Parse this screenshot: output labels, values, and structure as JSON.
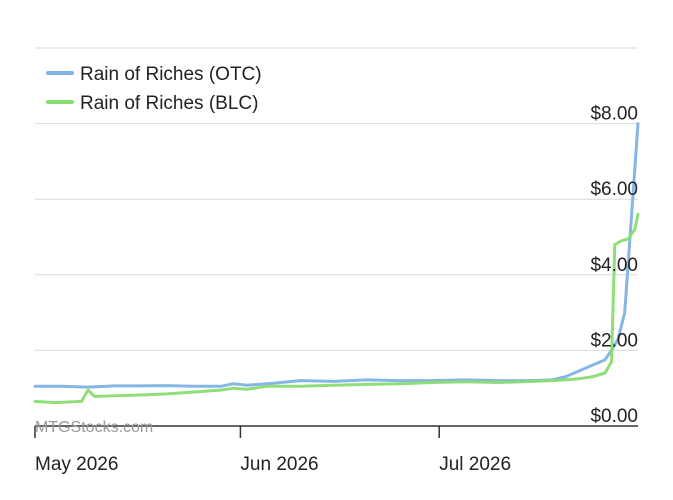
{
  "chart_data": {
    "type": "line",
    "ylim": [
      0,
      8
    ],
    "y_ticks": [
      "$0.00",
      "$2.00",
      "$4.00",
      "$6.00",
      "$8.00"
    ],
    "y_tick_values": [
      0,
      2,
      4,
      6,
      8
    ],
    "x_ticks": [
      "May 2026",
      "Jun 2026",
      "Jul 2026"
    ],
    "x_tick_days": [
      0,
      31,
      61
    ],
    "x_range_days": [
      0,
      91
    ],
    "grid": true,
    "legend_position": "top-left",
    "watermark": "MTGStocks.com",
    "series": [
      {
        "name": "Rain of Riches (OTC)",
        "color": "#7fb2e5",
        "points": [
          [
            0,
            1.05
          ],
          [
            4,
            1.05
          ],
          [
            8,
            1.03
          ],
          [
            12,
            1.06
          ],
          [
            16,
            1.06
          ],
          [
            20,
            1.07
          ],
          [
            24,
            1.05
          ],
          [
            28,
            1.05
          ],
          [
            30,
            1.12
          ],
          [
            32,
            1.08
          ],
          [
            36,
            1.13
          ],
          [
            40,
            1.2
          ],
          [
            45,
            1.18
          ],
          [
            50,
            1.22
          ],
          [
            55,
            1.2
          ],
          [
            60,
            1.2
          ],
          [
            65,
            1.22
          ],
          [
            70,
            1.2
          ],
          [
            75,
            1.2
          ],
          [
            78,
            1.22
          ],
          [
            80,
            1.3
          ],
          [
            82,
            1.45
          ],
          [
            84,
            1.6
          ],
          [
            86,
            1.75
          ],
          [
            87,
            2.0
          ],
          [
            88,
            2.3
          ],
          [
            89,
            3.0
          ],
          [
            89.6,
            4.5
          ],
          [
            90.2,
            6.0
          ],
          [
            91,
            8.0
          ]
        ]
      },
      {
        "name": "Rain of Riches (BLC)",
        "color": "#88dd70",
        "points": [
          [
            0,
            0.65
          ],
          [
            3,
            0.62
          ],
          [
            7,
            0.65
          ],
          [
            8,
            0.95
          ],
          [
            9,
            0.78
          ],
          [
            12,
            0.8
          ],
          [
            16,
            0.82
          ],
          [
            20,
            0.85
          ],
          [
            24,
            0.9
          ],
          [
            28,
            0.95
          ],
          [
            30,
            1.0
          ],
          [
            32,
            0.97
          ],
          [
            35,
            1.05
          ],
          [
            40,
            1.05
          ],
          [
            45,
            1.08
          ],
          [
            50,
            1.1
          ],
          [
            55,
            1.12
          ],
          [
            60,
            1.15
          ],
          [
            65,
            1.17
          ],
          [
            70,
            1.15
          ],
          [
            75,
            1.18
          ],
          [
            78,
            1.2
          ],
          [
            80,
            1.22
          ],
          [
            82,
            1.25
          ],
          [
            84,
            1.3
          ],
          [
            86,
            1.4
          ],
          [
            87,
            1.7
          ],
          [
            87.5,
            4.8
          ],
          [
            88.5,
            4.9
          ],
          [
            89.5,
            4.95
          ],
          [
            90.5,
            5.2
          ],
          [
            91,
            5.6
          ]
        ]
      }
    ]
  }
}
